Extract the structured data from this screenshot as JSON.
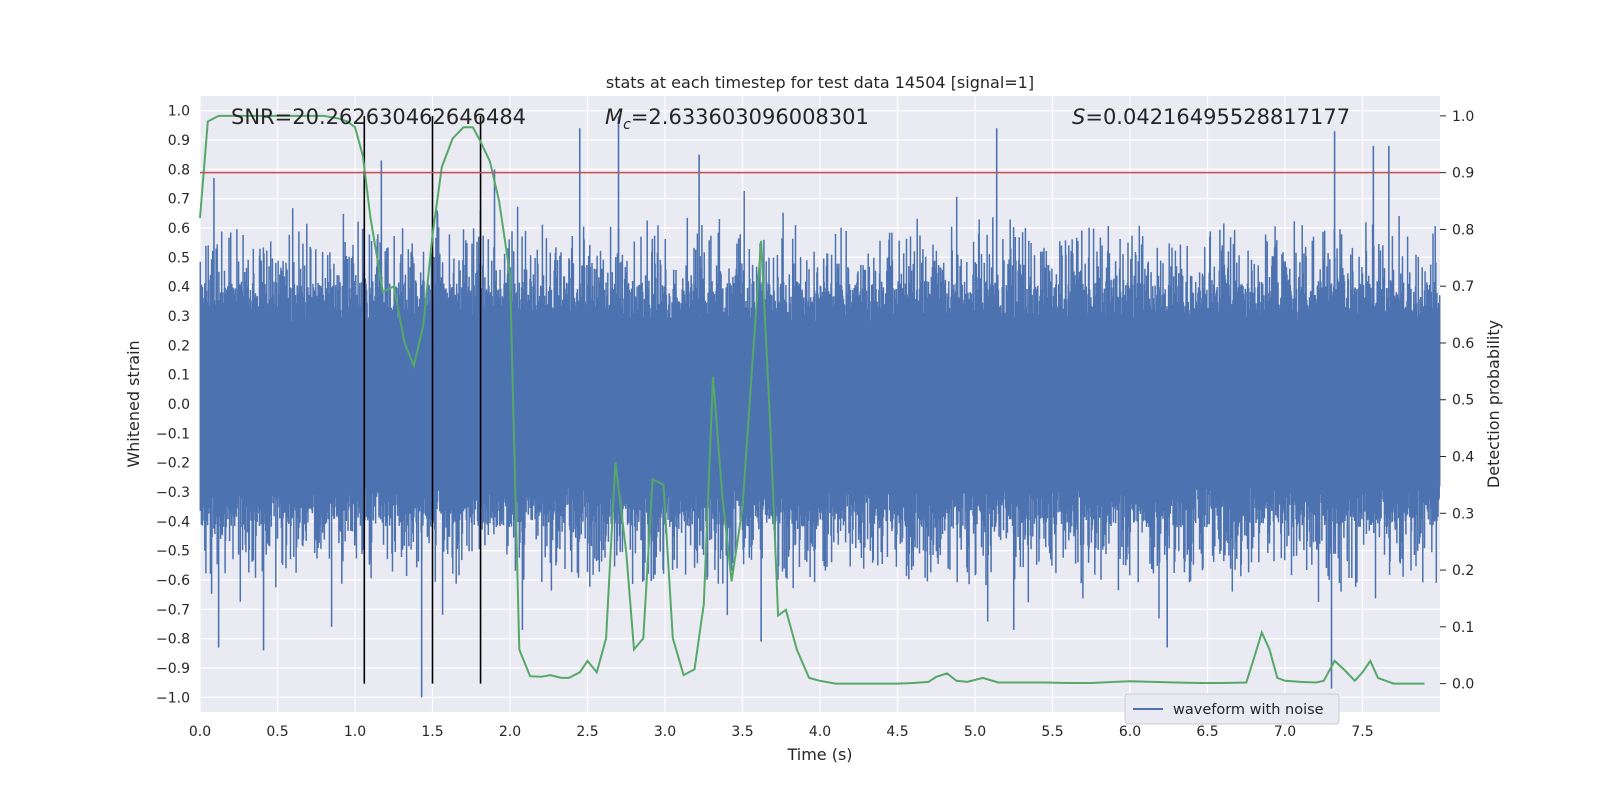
{
  "chart_data": {
    "type": "line",
    "title": "stats at each timestep for test data 14504 [signal=1]",
    "xlabel": "Time (s)",
    "ylabel_left": "Whitened strain",
    "ylabel_right": "Detection probability",
    "xlim": [
      0.0,
      8.0
    ],
    "ylim_left": [
      -1.05,
      1.05
    ],
    "ylim_right": [
      -0.05,
      1.035
    ],
    "x_ticks": [
      0.0,
      0.5,
      1.0,
      1.5,
      2.0,
      2.5,
      3.0,
      3.5,
      4.0,
      4.5,
      5.0,
      5.5,
      6.0,
      6.5,
      7.0,
      7.5
    ],
    "x_tick_labels": [
      "0.0",
      "0.5",
      "1.0",
      "1.5",
      "2.0",
      "2.5",
      "3.0",
      "3.5",
      "4.0",
      "4.5",
      "5.0",
      "5.5",
      "6.0",
      "6.5",
      "7.0",
      "7.5"
    ],
    "y_ticks_left": [
      1.0,
      0.9,
      0.8,
      0.7,
      0.6,
      0.5,
      0.4,
      0.3,
      0.2,
      0.1,
      0.0,
      -0.1,
      -0.2,
      -0.3,
      -0.4,
      -0.5,
      -0.6,
      -0.7,
      -0.8,
      -0.9,
      -1.0
    ],
    "y_tick_labels_left": [
      "1.0",
      "0.9",
      "0.8",
      "0.7",
      "0.6",
      "0.5",
      "0.4",
      "0.3",
      "0.2",
      "0.1",
      "0.0",
      "−0.1",
      "−0.2",
      "−0.3",
      "−0.4",
      "−0.5",
      "−0.6",
      "−0.7",
      "−0.8",
      "−0.9",
      "−1.0"
    ],
    "y_ticks_right": [
      1.0,
      0.9,
      0.8,
      0.7,
      0.6,
      0.5,
      0.4,
      0.3,
      0.2,
      0.1,
      0.0
    ],
    "y_tick_labels_right": [
      "1.0",
      "0.9",
      "0.8",
      "0.7",
      "0.6",
      "0.5",
      "0.4",
      "0.3",
      "0.2",
      "0.1",
      "0.0"
    ],
    "threshold": {
      "value_right_axis": 0.9,
      "color": "#c44e52"
    },
    "vertical_markers": [
      1.06,
      1.5,
      1.81
    ],
    "annotations": {
      "snr": "SNR=20.262630462646484",
      "mc_symbol": "M",
      "mc_sub": "c",
      "mc_value": "=2.633603096008301",
      "s_symbol": "S",
      "s_value": "=0.04216495528817177"
    },
    "legend": {
      "label": "waveform with noise",
      "location": "lower-right",
      "color": "#4c72b0"
    },
    "series": [
      {
        "name": "waveform with noise",
        "axis": "left",
        "color": "#4c72b0",
        "notable_peaks": [
          {
            "x": 0.09,
            "y": 0.77
          },
          {
            "x": 0.12,
            "y": -0.83
          },
          {
            "x": 0.41,
            "y": -0.84
          },
          {
            "x": 1.17,
            "y": 0.83
          },
          {
            "x": 1.43,
            "y": -1.0
          },
          {
            "x": 1.53,
            "y": 0.66
          },
          {
            "x": 1.9,
            "y": 0.8
          },
          {
            "x": 2.08,
            "y": -0.77
          },
          {
            "x": 2.45,
            "y": 0.94
          },
          {
            "x": 2.7,
            "y": 0.98
          },
          {
            "x": 3.22,
            "y": 0.85
          },
          {
            "x": 3.62,
            "y": -0.81
          },
          {
            "x": 5.14,
            "y": 0.94
          },
          {
            "x": 5.25,
            "y": -0.77
          },
          {
            "x": 6.24,
            "y": -0.83
          },
          {
            "x": 7.32,
            "y": 0.93
          },
          {
            "x": 7.3,
            "y": -0.97
          },
          {
            "x": 7.57,
            "y": 0.88
          },
          {
            "x": 7.67,
            "y": 0.88
          }
        ]
      },
      {
        "name": "Detection probability",
        "axis": "right",
        "color": "#55a868",
        "x": [
          0.0,
          0.05,
          0.12,
          0.2,
          0.3,
          0.4,
          0.5,
          0.6,
          0.7,
          0.8,
          0.9,
          0.95,
          1.0,
          1.05,
          1.1,
          1.18,
          1.25,
          1.32,
          1.38,
          1.44,
          1.5,
          1.56,
          1.63,
          1.7,
          1.76,
          1.8,
          1.87,
          1.93,
          2.0,
          2.06,
          2.13,
          2.2,
          2.26,
          2.33,
          2.38,
          2.45,
          2.5,
          2.56,
          2.62,
          2.68,
          2.75,
          2.8,
          2.86,
          2.92,
          2.99,
          3.05,
          3.12,
          3.19,
          3.25,
          3.31,
          3.37,
          3.43,
          3.5,
          3.56,
          3.62,
          3.68,
          3.73,
          3.78,
          3.85,
          3.93,
          4.0,
          4.1,
          4.2,
          4.35,
          4.5,
          4.6,
          4.7,
          4.75,
          4.82,
          4.88,
          4.95,
          5.05,
          5.15,
          5.3,
          5.45,
          5.6,
          5.75,
          5.9,
          6.0,
          6.15,
          6.3,
          6.45,
          6.6,
          6.75,
          6.8,
          6.85,
          6.9,
          6.95,
          7.0,
          7.1,
          7.2,
          7.25,
          7.32,
          7.38,
          7.45,
          7.5,
          7.55,
          7.6,
          7.65,
          7.7,
          7.9
        ],
        "y": [
          0.82,
          0.99,
          1.0,
          1.0,
          1.0,
          1.0,
          1.0,
          1.0,
          1.0,
          1.0,
          0.995,
          0.99,
          0.98,
          0.93,
          0.82,
          0.69,
          0.7,
          0.6,
          0.56,
          0.63,
          0.79,
          0.91,
          0.96,
          0.98,
          0.98,
          0.96,
          0.92,
          0.85,
          0.72,
          0.06,
          0.013,
          0.012,
          0.015,
          0.01,
          0.01,
          0.02,
          0.04,
          0.02,
          0.08,
          0.39,
          0.23,
          0.06,
          0.08,
          0.36,
          0.35,
          0.08,
          0.015,
          0.025,
          0.14,
          0.54,
          0.33,
          0.18,
          0.31,
          0.55,
          0.78,
          0.45,
          0.12,
          0.13,
          0.06,
          0.01,
          0.005,
          0.0,
          0.0,
          0.0,
          0.0,
          0.001,
          0.003,
          0.012,
          0.018,
          0.005,
          0.003,
          0.01,
          0.002,
          0.002,
          0.002,
          0.001,
          0.001,
          0.003,
          0.004,
          0.003,
          0.002,
          0.001,
          0.001,
          0.002,
          0.045,
          0.09,
          0.06,
          0.01,
          0.005,
          0.003,
          0.002,
          0.005,
          0.04,
          0.025,
          0.005,
          0.02,
          0.04,
          0.01,
          0.005,
          0.0,
          0.0
        ]
      }
    ]
  }
}
